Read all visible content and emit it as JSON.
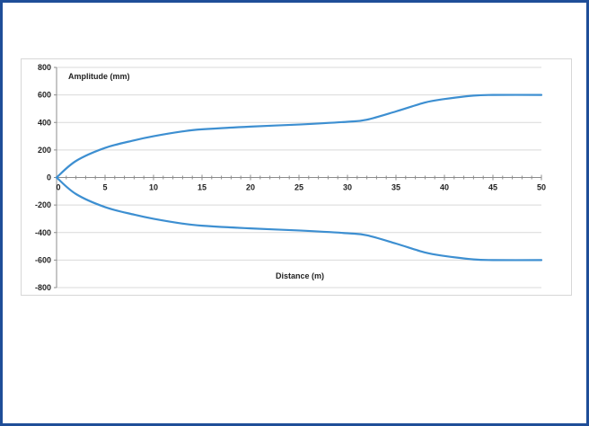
{
  "colors": {
    "frame": "#1f4e98",
    "series": "#3d8fd1",
    "grid": "#d9d9d9",
    "axis": "#8c8c8c"
  },
  "chart_data": {
    "type": "line",
    "ylabel": "Amplitude (mm)",
    "xlabel": "Distance (m)",
    "xlim": [
      0,
      50
    ],
    "ylim": [
      -800,
      800
    ],
    "xticks": [
      0,
      5,
      10,
      15,
      20,
      25,
      30,
      35,
      40,
      45,
      50
    ],
    "yticks": [
      800,
      600,
      400,
      200,
      0,
      -200,
      -400,
      -600,
      -800
    ],
    "grid": true,
    "legend": "none",
    "series": [
      {
        "x": [
          0,
          2,
          5,
          8,
          10,
          13,
          15,
          20,
          25,
          30,
          32,
          35,
          38,
          40,
          43,
          45,
          50
        ],
        "values": [
          0,
          120,
          215,
          270,
          300,
          335,
          350,
          370,
          385,
          405,
          420,
          480,
          545,
          570,
          595,
          600,
          600
        ]
      },
      {
        "x": [
          0,
          2,
          5,
          8,
          10,
          13,
          15,
          20,
          25,
          30,
          32,
          35,
          38,
          40,
          43,
          45,
          50
        ],
        "values": [
          0,
          -120,
          -215,
          -270,
          -300,
          -335,
          -350,
          -370,
          -385,
          -405,
          -420,
          -480,
          -545,
          -570,
          -595,
          -600,
          -600
        ]
      }
    ]
  }
}
